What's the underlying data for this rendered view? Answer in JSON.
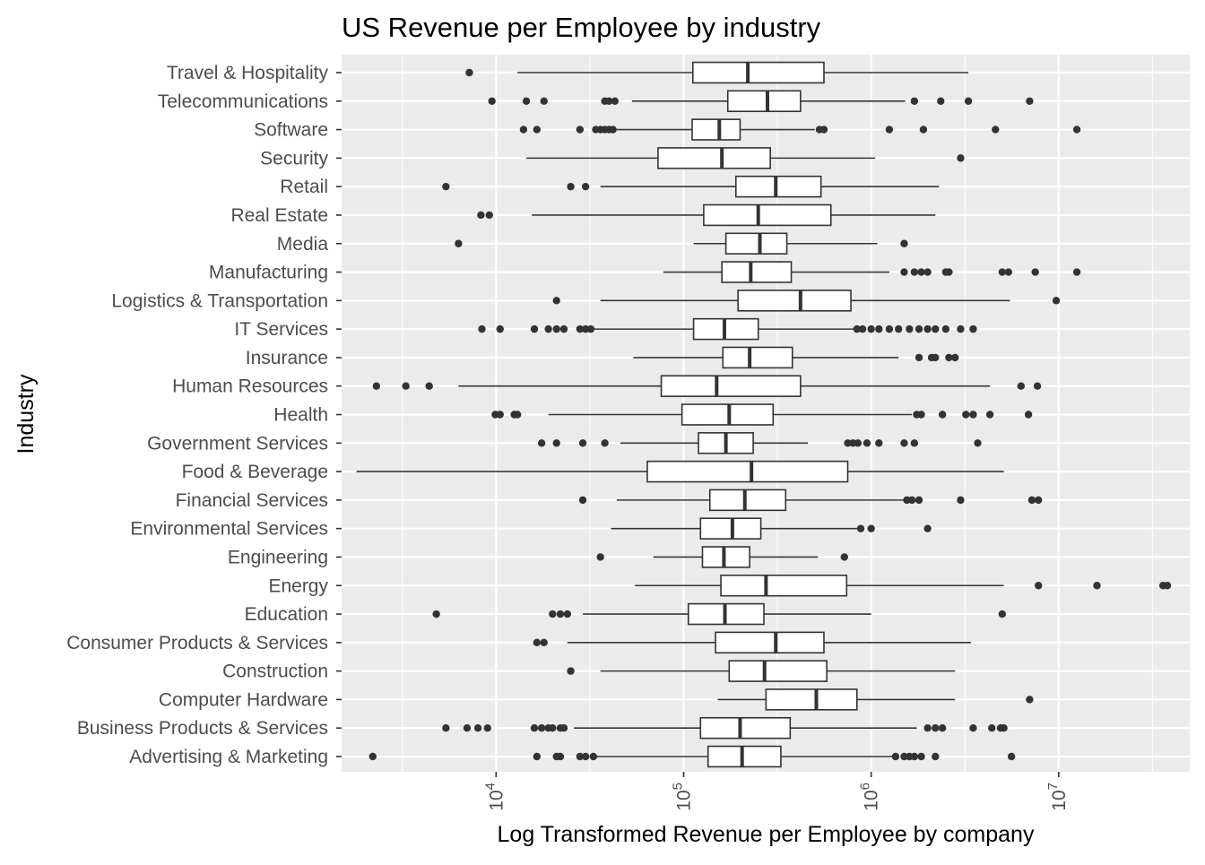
{
  "chart_data": {
    "type": "boxplot",
    "orientation": "horizontal",
    "title": "US Revenue per Employee by industry",
    "xlabel": "Log Transformed Revenue per Employee by company",
    "ylabel": "Industry",
    "x_scale": "log10",
    "xlim": [
      1500,
      50000000
    ],
    "x_ticks": [
      {
        "value": 10000,
        "base": "10",
        "exponent": "4"
      },
      {
        "value": 100000,
        "base": "10",
        "exponent": "5"
      },
      {
        "value": 1000000,
        "base": "10",
        "exponent": "6"
      },
      {
        "value": 10000000,
        "base": "10",
        "exponent": "7"
      }
    ],
    "grid": true,
    "colors": {
      "panel": "#ebebeb",
      "grid": "#ffffff",
      "box_fill": "#ffffff",
      "box_line": "#333333",
      "point": "#333333",
      "tick_text": "#4d4d4d"
    },
    "categories": [
      {
        "name": "Travel & Hospitality",
        "whisker_low": 13000,
        "q1": 112000,
        "median": 220000,
        "q3": 560000,
        "whisker_high": 3300000,
        "outliers": [
          7200
        ]
      },
      {
        "name": "Telecommunications",
        "whisker_low": 53000,
        "q1": 172000,
        "median": 280000,
        "q3": 420000,
        "whisker_high": 1520000,
        "outliers": [
          9500,
          14500,
          18000,
          38000,
          40000,
          43000,
          1700000,
          2350000,
          3300000,
          7000000
        ]
      },
      {
        "name": "Software",
        "whisker_low": 44000,
        "q1": 111000,
        "median": 155000,
        "q3": 200000,
        "whisker_high": 500000,
        "outliers": [
          14000,
          16500,
          28000,
          34000,
          36000,
          38000,
          40000,
          42000,
          530000,
          560000,
          1250000,
          1900000,
          4600000,
          12500000
        ]
      },
      {
        "name": "Security",
        "whisker_low": 14500,
        "q1": 73000,
        "median": 160000,
        "q3": 290000,
        "whisker_high": 1050000,
        "outliers": [
          3000000
        ]
      },
      {
        "name": "Retail",
        "whisker_low": 36000,
        "q1": 190000,
        "median": 310000,
        "q3": 540000,
        "whisker_high": 2300000,
        "outliers": [
          5400,
          25000,
          30000
        ]
      },
      {
        "name": "Real Estate",
        "whisker_low": 15500,
        "q1": 128000,
        "median": 250000,
        "q3": 610000,
        "whisker_high": 2200000,
        "outliers": [
          8300,
          9200
        ]
      },
      {
        "name": "Media",
        "whisker_low": 113000,
        "q1": 168000,
        "median": 255000,
        "q3": 355000,
        "whisker_high": 1080000,
        "outliers": [
          6300,
          1500000
        ]
      },
      {
        "name": "Manufacturing",
        "whisker_low": 78000,
        "q1": 160000,
        "median": 228000,
        "q3": 375000,
        "whisker_high": 1250000,
        "outliers": [
          1500000,
          1700000,
          1850000,
          2000000,
          2500000,
          2600000,
          5000000,
          5400000,
          7500000,
          12500000
        ]
      },
      {
        "name": "Logistics & Transportation",
        "whisker_low": 36000,
        "q1": 195000,
        "median": 420000,
        "q3": 780000,
        "whisker_high": 5500000,
        "outliers": [
          21000,
          9700000
        ]
      },
      {
        "name": "IT Services",
        "whisker_low": 33000,
        "q1": 113000,
        "median": 165000,
        "q3": 250000,
        "whisker_high": 820000,
        "outliers": [
          8400,
          10500,
          16000,
          19000,
          21000,
          23000,
          28000,
          30000,
          32000,
          840000,
          900000,
          1000000,
          1100000,
          1250000,
          1400000,
          1600000,
          1800000,
          2000000,
          2200000,
          2500000,
          3000000,
          3500000
        ]
      },
      {
        "name": "Insurance",
        "whisker_low": 54000,
        "q1": 162000,
        "median": 225000,
        "q3": 380000,
        "whisker_high": 1400000,
        "outliers": [
          1800000,
          2100000,
          2200000,
          2600000,
          2800000
        ]
      },
      {
        "name": "Human Resources",
        "whisker_low": 6300,
        "q1": 76000,
        "median": 150000,
        "q3": 420000,
        "whisker_high": 4300000,
        "outliers": [
          2300,
          3300,
          4400,
          6300000,
          7700000
        ]
      },
      {
        "name": "Health",
        "whisker_low": 19000,
        "q1": 98000,
        "median": 175000,
        "q3": 300000,
        "whisker_high": 1650000,
        "outliers": [
          9900,
          10500,
          12500,
          13000,
          1750000,
          1850000,
          2400000,
          3200000,
          3500000,
          4300000,
          6900000
        ]
      },
      {
        "name": "Government Services",
        "whisker_low": 46000,
        "q1": 120000,
        "median": 168000,
        "q3": 235000,
        "whisker_high": 460000,
        "outliers": [
          17500,
          21000,
          29000,
          38000,
          750000,
          800000,
          850000,
          950000,
          1100000,
          1500000,
          1700000,
          3700000
        ]
      },
      {
        "name": "Food & Beverage",
        "whisker_low": 1800,
        "q1": 64000,
        "median": 230000,
        "q3": 750000,
        "whisker_high": 5100000,
        "outliers": []
      },
      {
        "name": "Financial Services",
        "whisker_low": 44000,
        "q1": 138000,
        "median": 212000,
        "q3": 350000,
        "whisker_high": 1500000,
        "outliers": [
          29000,
          1550000,
          1650000,
          1800000,
          3000000,
          7200000,
          7800000
        ]
      },
      {
        "name": "Environmental Services",
        "whisker_low": 41000,
        "q1": 123000,
        "median": 182000,
        "q3": 258000,
        "whisker_high": 870000,
        "outliers": [
          880000,
          1000000,
          2000000
        ]
      },
      {
        "name": "Engineering",
        "whisker_low": 69000,
        "q1": 126000,
        "median": 164000,
        "q3": 225000,
        "whisker_high": 520000,
        "outliers": [
          36000,
          720000
        ]
      },
      {
        "name": "Energy",
        "whisker_low": 55000,
        "q1": 158000,
        "median": 275000,
        "q3": 740000,
        "whisker_high": 5100000,
        "outliers": [
          7800000,
          16000000,
          36000000,
          38000000
        ]
      },
      {
        "name": "Education",
        "whisker_low": 29000,
        "q1": 106000,
        "median": 166000,
        "q3": 268000,
        "whisker_high": 1000000,
        "outliers": [
          4800,
          20000,
          22000,
          24000,
          5000000
        ]
      },
      {
        "name": "Consumer Products & Services",
        "whisker_low": 24000,
        "q1": 148000,
        "median": 310000,
        "q3": 560000,
        "whisker_high": 3400000,
        "outliers": [
          16500,
          18000
        ]
      },
      {
        "name": "Construction",
        "whisker_low": 36000,
        "q1": 175000,
        "median": 270000,
        "q3": 580000,
        "whisker_high": 2800000,
        "outliers": [
          25000
        ]
      },
      {
        "name": "Computer Hardware",
        "whisker_low": 152000,
        "q1": 275000,
        "median": 510000,
        "q3": 840000,
        "whisker_high": 2800000,
        "outliers": [
          7000000
        ]
      },
      {
        "name": "Business Products & Services",
        "whisker_low": 26000,
        "q1": 123000,
        "median": 200000,
        "q3": 370000,
        "whisker_high": 1750000,
        "outliers": [
          5400,
          7000,
          8000,
          9000,
          16000,
          17500,
          19000,
          20000,
          22000,
          23000,
          2000000,
          2200000,
          2400000,
          3500000,
          4400000,
          4900000,
          5100000
        ]
      },
      {
        "name": "Advertising & Marketing",
        "whisker_low": 34000,
        "q1": 135000,
        "median": 205000,
        "q3": 330000,
        "whisker_high": 1300000,
        "outliers": [
          2200,
          16500,
          21000,
          22000,
          28000,
          30000,
          33000,
          1350000,
          1500000,
          1600000,
          1700000,
          1850000,
          2200000,
          5600000
        ]
      }
    ]
  }
}
